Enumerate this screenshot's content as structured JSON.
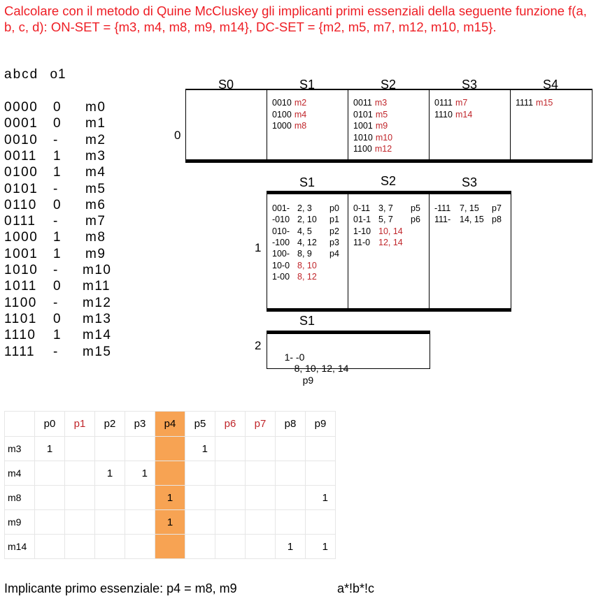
{
  "title": "Calcolare con il metodo di Quine McCluskey gli implicanti primi essenziali della seguente funzione f(a, b, c, d): ON-SET = {m3, m4, m8, m9, m14}, DC-SET = {m2, m5, m7, m12, m10, m15}.",
  "truth_table": {
    "header_vars": "abcd",
    "header_out": "o1",
    "rows": [
      {
        "bits": "0000",
        "out": "0",
        "m": "m0"
      },
      {
        "bits": "0001",
        "out": "0",
        "m": "m1"
      },
      {
        "bits": "0010",
        "out": "-",
        "m": "m2"
      },
      {
        "bits": "0011",
        "out": "1",
        "m": "m3"
      },
      {
        "bits": "0100",
        "out": "1",
        "m": "m4"
      },
      {
        "bits": "0101",
        "out": "-",
        "m": "m5"
      },
      {
        "bits": "0110",
        "out": "0",
        "m": "m6"
      },
      {
        "bits": "0111",
        "out": "-",
        "m": "m7"
      },
      {
        "bits": "1000",
        "out": "1",
        "m": "m8"
      },
      {
        "bits": "1001",
        "out": "1",
        "m": "m9"
      },
      {
        "bits": "1010",
        "out": "-",
        "m": "m10"
      },
      {
        "bits": "1011",
        "out": "0",
        "m": "m11"
      },
      {
        "bits": "1100",
        "out": "-",
        "m": "m12"
      },
      {
        "bits": "1101",
        "out": "0",
        "m": "m13"
      },
      {
        "bits": "1110",
        "out": "1",
        "m": "m14"
      },
      {
        "bits": "1111",
        "out": "-",
        "m": "m15"
      }
    ]
  },
  "level0": {
    "label": "0",
    "headers": [
      "S0",
      "S1",
      "S2",
      "S3",
      "S4"
    ],
    "cols": [
      [],
      [
        {
          "b": "0010",
          "m": "m2"
        },
        {
          "b": "0100",
          "m": "m4"
        },
        {
          "b": "1000",
          "m": "m8"
        }
      ],
      [
        {
          "b": "0011",
          "m": "m3"
        },
        {
          "b": "0101",
          "m": "m5"
        },
        {
          "b": "1001",
          "m": "m9"
        },
        {
          "b": "1010",
          "m": "m10"
        },
        {
          "b": "1100",
          "m": "m12"
        }
      ],
      [
        {
          "b": "0111",
          "m": "m7"
        },
        {
          "b": "1110",
          "m": "m14"
        }
      ],
      [
        {
          "b": "1111",
          "m": "m15"
        }
      ]
    ]
  },
  "level1": {
    "label": "1",
    "headers": [
      "S1",
      "S2",
      "S3"
    ],
    "cols": [
      [
        {
          "b": "001-",
          "m": "2, 3",
          "p": "p0",
          "red": false
        },
        {
          "b": "-010",
          "m": "2, 10",
          "p": "p1",
          "red": false
        },
        {
          "b": "010-",
          "m": "4, 5",
          "p": "p2",
          "red": false
        },
        {
          "b": "-100",
          "m": "4, 12",
          "p": "p3",
          "red": false
        },
        {
          "b": "100-",
          "m": "8, 9",
          "p": "p4",
          "red": false
        },
        {
          "b": "10-0",
          "m": "8, 10",
          "p": "",
          "red": true
        },
        {
          "b": "1-00",
          "m": "8, 12",
          "p": "",
          "red": true
        }
      ],
      [
        {
          "b": "0-11",
          "m": "3, 7",
          "p": "p5",
          "red": false
        },
        {
          "b": "01-1",
          "m": "5, 7",
          "p": "p6",
          "red": false
        },
        {
          "b": "1-10",
          "m": "10, 14",
          "p": "",
          "red": true
        },
        {
          "b": "11-0",
          "m": "12, 14",
          "p": "",
          "red": true
        }
      ],
      [
        {
          "b": "-111",
          "m": "7, 15",
          "p": "p7",
          "red": false
        },
        {
          "b": "111-",
          "m": "14, 15",
          "p": "p8",
          "red": false
        }
      ]
    ]
  },
  "level2": {
    "label": "2",
    "header": "S1",
    "entry": {
      "b": "1- -0",
      "m": "8, 10, 12, 14",
      "p": "p9"
    }
  },
  "pi_table": {
    "columns": [
      {
        "label": "p0",
        "red": false
      },
      {
        "label": "p1",
        "red": true
      },
      {
        "label": "p2",
        "red": false
      },
      {
        "label": "p3",
        "red": false
      },
      {
        "label": "p4",
        "red": false
      },
      {
        "label": "p5",
        "red": false
      },
      {
        "label": "p6",
        "red": true
      },
      {
        "label": "p7",
        "red": true
      },
      {
        "label": "p8",
        "red": false
      },
      {
        "label": "p9",
        "red": false
      }
    ],
    "highlight_column": "p4",
    "highlight_color": "#f7a353",
    "rows": [
      {
        "label": "m3",
        "cells": [
          "1",
          "",
          "",
          "",
          "",
          "1",
          "",
          "",
          "",
          ""
        ]
      },
      {
        "label": "m4",
        "cells": [
          "",
          "",
          "1",
          "1",
          "",
          "",
          "",
          "",
          "",
          ""
        ]
      },
      {
        "label": "m8",
        "cells": [
          "",
          "",
          "",
          "",
          "1",
          "",
          "",
          "",
          "",
          "1"
        ]
      },
      {
        "label": "m9",
        "cells": [
          "",
          "",
          "",
          "",
          "1",
          "",
          "",
          "",
          "",
          ""
        ]
      },
      {
        "label": "m14",
        "cells": [
          "",
          "",
          "",
          "",
          "",
          "",
          "",
          "",
          "1",
          "1"
        ]
      }
    ]
  },
  "footer": {
    "text": "Implicante primo essenziale: p4 = m8, m9",
    "expression": "a*!b*!c"
  },
  "colors": {
    "title": "#ee1d24",
    "minterm": "#c0262b",
    "highlight": "#f7a353"
  }
}
